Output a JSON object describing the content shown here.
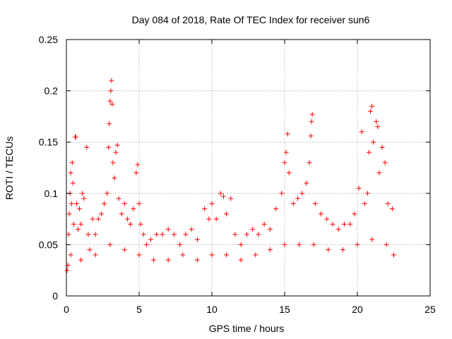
{
  "chart_data": {
    "type": "scatter",
    "title": "Day 084 of 2018, Rate Of TEC Index for receiver sun6",
    "xlabel": "GPS time / hours",
    "ylabel": "ROTI / TECUs",
    "xlim": [
      0,
      25
    ],
    "ylim": [
      0,
      0.25
    ],
    "xticks": [
      0,
      5,
      10,
      15,
      20,
      25
    ],
    "yticks": [
      0,
      0.05,
      0.1,
      0.15,
      0.2,
      0.25
    ],
    "xtick_labels": [
      "0",
      "5",
      "10",
      "15",
      "20",
      "25"
    ],
    "ytick_labels": [
      "0",
      "0.05",
      "0.1",
      "0.15",
      "0.2",
      "0.25"
    ],
    "grid": true,
    "marker": "plus",
    "color": "#ff0000",
    "series": [
      {
        "name": "ROTI",
        "points": [
          [
            0.05,
            0.025
          ],
          [
            0.1,
            0.03
          ],
          [
            0.15,
            0.06
          ],
          [
            0.2,
            0.08
          ],
          [
            0.25,
            0.1
          ],
          [
            0.3,
            0.12
          ],
          [
            0.35,
            0.09
          ],
          [
            0.4,
            0.13
          ],
          [
            0.45,
            0.11
          ],
          [
            0.5,
            0.07
          ],
          [
            0.6,
            0.155
          ],
          [
            0.65,
            0.155
          ],
          [
            0.7,
            0.09
          ],
          [
            0.8,
            0.065
          ],
          [
            0.9,
            0.085
          ],
          [
            1.0,
            0.07
          ],
          [
            1.1,
            0.1
          ],
          [
            1.2,
            0.095
          ],
          [
            1.4,
            0.145
          ],
          [
            1.5,
            0.06
          ],
          [
            1.6,
            0.045
          ],
          [
            1.8,
            0.075
          ],
          [
            2.0,
            0.06
          ],
          [
            2.2,
            0.075
          ],
          [
            2.4,
            0.08
          ],
          [
            2.6,
            0.09
          ],
          [
            2.8,
            0.1
          ],
          [
            2.9,
            0.145
          ],
          [
            2.95,
            0.168
          ],
          [
            3.0,
            0.19
          ],
          [
            3.05,
            0.2
          ],
          [
            3.1,
            0.21
          ],
          [
            3.15,
            0.187
          ],
          [
            3.2,
            0.13
          ],
          [
            3.3,
            0.115
          ],
          [
            3.4,
            0.14
          ],
          [
            3.5,
            0.147
          ],
          [
            3.6,
            0.095
          ],
          [
            3.8,
            0.08
          ],
          [
            4.0,
            0.09
          ],
          [
            4.2,
            0.075
          ],
          [
            4.4,
            0.07
          ],
          [
            4.6,
            0.085
          ],
          [
            4.8,
            0.12
          ],
          [
            4.9,
            0.128
          ],
          [
            5.0,
            0.09
          ],
          [
            5.1,
            0.07
          ],
          [
            5.3,
            0.06
          ],
          [
            5.5,
            0.05
          ],
          [
            5.8,
            0.055
          ],
          [
            6.2,
            0.06
          ],
          [
            6.6,
            0.06
          ],
          [
            7.0,
            0.065
          ],
          [
            7.4,
            0.06
          ],
          [
            7.8,
            0.05
          ],
          [
            8.2,
            0.06
          ],
          [
            8.6,
            0.065
          ],
          [
            9.0,
            0.055
          ],
          [
            9.5,
            0.085
          ],
          [
            9.8,
            0.075
          ],
          [
            10.0,
            0.09
          ],
          [
            10.3,
            0.075
          ],
          [
            10.6,
            0.1
          ],
          [
            10.8,
            0.097
          ],
          [
            11.0,
            0.08
          ],
          [
            11.3,
            0.095
          ],
          [
            11.6,
            0.06
          ],
          [
            12.0,
            0.05
          ],
          [
            12.4,
            0.06
          ],
          [
            12.8,
            0.065
          ],
          [
            13.2,
            0.06
          ],
          [
            13.6,
            0.07
          ],
          [
            14.0,
            0.065
          ],
          [
            14.4,
            0.085
          ],
          [
            14.8,
            0.1
          ],
          [
            15.0,
            0.13
          ],
          [
            15.1,
            0.14
          ],
          [
            15.2,
            0.158
          ],
          [
            15.3,
            0.12
          ],
          [
            15.6,
            0.09
          ],
          [
            15.9,
            0.095
          ],
          [
            16.2,
            0.1
          ],
          [
            16.5,
            0.11
          ],
          [
            16.7,
            0.13
          ],
          [
            16.8,
            0.156
          ],
          [
            16.85,
            0.17
          ],
          [
            16.9,
            0.177
          ],
          [
            17.1,
            0.09
          ],
          [
            17.5,
            0.08
          ],
          [
            17.9,
            0.075
          ],
          [
            18.3,
            0.07
          ],
          [
            18.7,
            0.065
          ],
          [
            19.1,
            0.07
          ],
          [
            19.5,
            0.07
          ],
          [
            19.8,
            0.08
          ],
          [
            20.1,
            0.105
          ],
          [
            20.3,
            0.16
          ],
          [
            20.5,
            0.09
          ],
          [
            20.7,
            0.1
          ],
          [
            20.8,
            0.14
          ],
          [
            20.9,
            0.18
          ],
          [
            21.0,
            0.185
          ],
          [
            21.1,
            0.15
          ],
          [
            21.3,
            0.17
          ],
          [
            21.4,
            0.165
          ],
          [
            21.5,
            0.12
          ],
          [
            21.7,
            0.145
          ],
          [
            21.9,
            0.13
          ],
          [
            22.1,
            0.09
          ],
          [
            22.4,
            0.085
          ],
          [
            0.3,
            0.04
          ],
          [
            1.0,
            0.035
          ],
          [
            2.0,
            0.04
          ],
          [
            3.0,
            0.05
          ],
          [
            4.0,
            0.045
          ],
          [
            5.0,
            0.04
          ],
          [
            6.0,
            0.035
          ],
          [
            7.0,
            0.035
          ],
          [
            8.0,
            0.04
          ],
          [
            9.0,
            0.035
          ],
          [
            10.0,
            0.04
          ],
          [
            11.0,
            0.04
          ],
          [
            12.0,
            0.035
          ],
          [
            13.0,
            0.04
          ],
          [
            14.0,
            0.045
          ],
          [
            15.0,
            0.05
          ],
          [
            16.0,
            0.05
          ],
          [
            17.0,
            0.05
          ],
          [
            18.0,
            0.045
          ],
          [
            19.0,
            0.045
          ],
          [
            20.0,
            0.05
          ],
          [
            21.0,
            0.055
          ],
          [
            22.0,
            0.05
          ],
          [
            22.5,
            0.04
          ]
        ]
      }
    ]
  }
}
